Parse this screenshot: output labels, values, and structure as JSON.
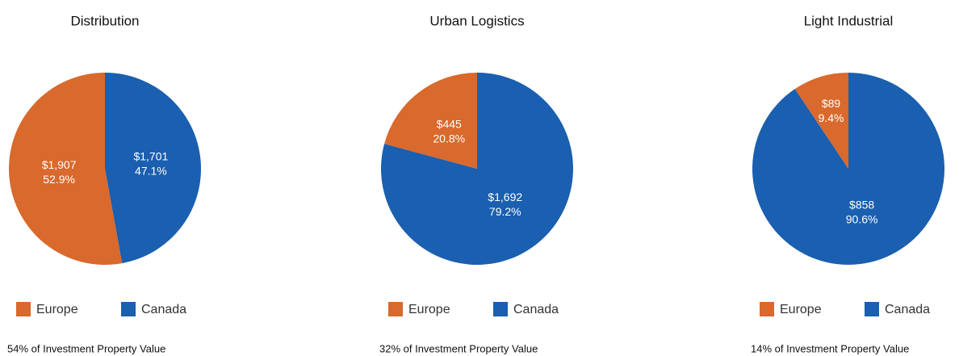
{
  "chart_data": [
    {
      "type": "pie",
      "title": "Distribution",
      "categories": [
        "Europe",
        "Canada"
      ],
      "colors": [
        "#d9692c",
        "#1a5fb0"
      ],
      "values": [
        1907,
        1701
      ],
      "value_labels": [
        "$1,907",
        "$1,701"
      ],
      "percents": [
        52.9,
        47.1
      ],
      "percent_labels": [
        "52.9%",
        "47.1%"
      ],
      "footnote": "54% of Investment Property Value"
    },
    {
      "type": "pie",
      "title": "Urban Logistics",
      "categories": [
        "Europe",
        "Canada"
      ],
      "colors": [
        "#d9692c",
        "#1a5fb0"
      ],
      "values": [
        445,
        1692
      ],
      "value_labels": [
        "$445",
        "$1,692"
      ],
      "percents": [
        20.8,
        79.2
      ],
      "percent_labels": [
        "20.8%",
        "79.2%"
      ],
      "footnote": "32% of Investment Property Value"
    },
    {
      "type": "pie",
      "title": "Light Industrial",
      "categories": [
        "Europe",
        "Canada"
      ],
      "colors": [
        "#d9692c",
        "#1a5fb0"
      ],
      "values": [
        89,
        858
      ],
      "value_labels": [
        "$89",
        "$858"
      ],
      "percents": [
        9.4,
        90.6
      ],
      "percent_labels": [
        "9.4%",
        "90.6%"
      ],
      "footnote": "14% of Investment Property Value"
    }
  ]
}
